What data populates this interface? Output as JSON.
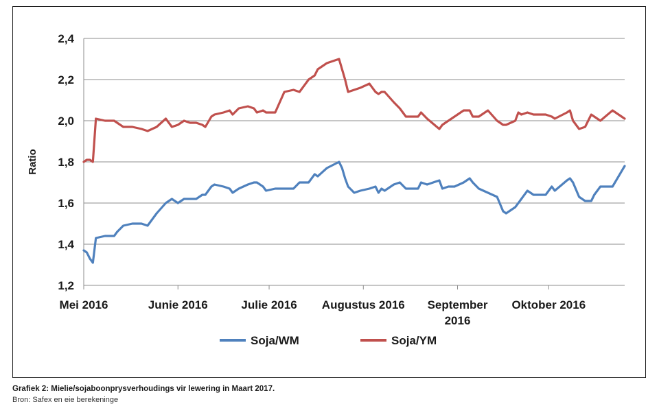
{
  "chart_data": {
    "type": "line",
    "ylabel": "Ratio",
    "ylim": [
      1.2,
      2.4
    ],
    "yticks": [
      "1,2",
      "1,4",
      "1,6",
      "1,8",
      "2,0",
      "2,2",
      "2,4"
    ],
    "x_range": [
      "2016-05-01",
      "2016-10-26"
    ],
    "x_ticks": [
      {
        "label": [
          "Mei 2016"
        ],
        "date": "2016-05-01"
      },
      {
        "label": [
          "Junie 2016"
        ],
        "date": "2016-06-01"
      },
      {
        "label": [
          "Julie 2016"
        ],
        "date": "2016-07-01"
      },
      {
        "label": [
          "Augustus 2016"
        ],
        "date": "2016-08-01"
      },
      {
        "label": [
          "September",
          "2016"
        ],
        "date": "2016-09-01"
      },
      {
        "label": [
          "Oktober 2016"
        ],
        "date": "2016-10-01"
      }
    ],
    "grid": true,
    "legend_position": "bottom",
    "series": [
      {
        "name": "Soja/WM",
        "color": "#4f81bd",
        "points": [
          [
            "2016-05-01",
            1.37
          ],
          [
            "2016-05-02",
            1.36
          ],
          [
            "2016-05-03",
            1.33
          ],
          [
            "2016-05-04",
            1.31
          ],
          [
            "2016-05-05",
            1.43
          ],
          [
            "2016-05-08",
            1.44
          ],
          [
            "2016-05-10",
            1.44
          ],
          [
            "2016-05-11",
            1.44
          ],
          [
            "2016-05-12",
            1.46
          ],
          [
            "2016-05-14",
            1.49
          ],
          [
            "2016-05-17",
            1.5
          ],
          [
            "2016-05-20",
            1.5
          ],
          [
            "2016-05-22",
            1.49
          ],
          [
            "2016-05-25",
            1.55
          ],
          [
            "2016-05-28",
            1.6
          ],
          [
            "2016-05-30",
            1.62
          ],
          [
            "2016-06-01",
            1.6
          ],
          [
            "2016-06-03",
            1.62
          ],
          [
            "2016-06-05",
            1.62
          ],
          [
            "2016-06-07",
            1.62
          ],
          [
            "2016-06-09",
            1.64
          ],
          [
            "2016-06-10",
            1.64
          ],
          [
            "2016-06-12",
            1.68
          ],
          [
            "2016-06-13",
            1.69
          ],
          [
            "2016-06-16",
            1.68
          ],
          [
            "2016-06-18",
            1.67
          ],
          [
            "2016-06-19",
            1.65
          ],
          [
            "2016-06-21",
            1.67
          ],
          [
            "2016-06-24",
            1.69
          ],
          [
            "2016-06-26",
            1.7
          ],
          [
            "2016-06-27",
            1.7
          ],
          [
            "2016-06-29",
            1.68
          ],
          [
            "2016-06-30",
            1.66
          ],
          [
            "2016-07-03",
            1.67
          ],
          [
            "2016-07-06",
            1.67
          ],
          [
            "2016-07-09",
            1.67
          ],
          [
            "2016-07-11",
            1.7
          ],
          [
            "2016-07-14",
            1.7
          ],
          [
            "2016-07-16",
            1.74
          ],
          [
            "2016-07-17",
            1.73
          ],
          [
            "2016-07-20",
            1.77
          ],
          [
            "2016-07-24",
            1.8
          ],
          [
            "2016-07-25",
            1.77
          ],
          [
            "2016-07-26",
            1.72
          ],
          [
            "2016-07-27",
            1.68
          ],
          [
            "2016-07-29",
            1.65
          ],
          [
            "2016-07-31",
            1.66
          ],
          [
            "2016-08-03",
            1.67
          ],
          [
            "2016-08-05",
            1.68
          ],
          [
            "2016-08-06",
            1.65
          ],
          [
            "2016-08-07",
            1.67
          ],
          [
            "2016-08-08",
            1.66
          ],
          [
            "2016-08-11",
            1.69
          ],
          [
            "2016-08-13",
            1.7
          ],
          [
            "2016-08-15",
            1.67
          ],
          [
            "2016-08-19",
            1.67
          ],
          [
            "2016-08-20",
            1.7
          ],
          [
            "2016-08-22",
            1.69
          ],
          [
            "2016-08-26",
            1.71
          ],
          [
            "2016-08-27",
            1.67
          ],
          [
            "2016-08-29",
            1.68
          ],
          [
            "2016-08-31",
            1.68
          ],
          [
            "2016-09-03",
            1.7
          ],
          [
            "2016-09-05",
            1.72
          ],
          [
            "2016-09-06",
            1.7
          ],
          [
            "2016-09-08",
            1.67
          ],
          [
            "2016-09-11",
            1.65
          ],
          [
            "2016-09-14",
            1.63
          ],
          [
            "2016-09-16",
            1.56
          ],
          [
            "2016-09-17",
            1.55
          ],
          [
            "2016-09-20",
            1.58
          ],
          [
            "2016-09-21",
            1.6
          ],
          [
            "2016-09-22",
            1.62
          ],
          [
            "2016-09-24",
            1.66
          ],
          [
            "2016-09-26",
            1.64
          ],
          [
            "2016-09-30",
            1.64
          ],
          [
            "2016-10-02",
            1.68
          ],
          [
            "2016-10-03",
            1.66
          ],
          [
            "2016-10-07",
            1.71
          ],
          [
            "2016-10-08",
            1.72
          ],
          [
            "2016-10-09",
            1.7
          ],
          [
            "2016-10-11",
            1.63
          ],
          [
            "2016-10-13",
            1.61
          ],
          [
            "2016-10-15",
            1.61
          ],
          [
            "2016-10-16",
            1.64
          ],
          [
            "2016-10-18",
            1.68
          ],
          [
            "2016-10-22",
            1.68
          ],
          [
            "2016-10-26",
            1.78
          ]
        ]
      },
      {
        "name": "Soja/YM",
        "color": "#c0504d",
        "points": [
          [
            "2016-05-01",
            1.8
          ],
          [
            "2016-05-02",
            1.81
          ],
          [
            "2016-05-03",
            1.81
          ],
          [
            "2016-05-04",
            1.8
          ],
          [
            "2016-05-05",
            2.01
          ],
          [
            "2016-05-08",
            2.0
          ],
          [
            "2016-05-10",
            2.0
          ],
          [
            "2016-05-11",
            2.0
          ],
          [
            "2016-05-12",
            1.99
          ],
          [
            "2016-05-14",
            1.97
          ],
          [
            "2016-05-17",
            1.97
          ],
          [
            "2016-05-20",
            1.96
          ],
          [
            "2016-05-22",
            1.95
          ],
          [
            "2016-05-25",
            1.97
          ],
          [
            "2016-05-28",
            2.01
          ],
          [
            "2016-05-30",
            1.97
          ],
          [
            "2016-06-01",
            1.98
          ],
          [
            "2016-06-03",
            2.0
          ],
          [
            "2016-06-05",
            1.99
          ],
          [
            "2016-06-07",
            1.99
          ],
          [
            "2016-06-09",
            1.98
          ],
          [
            "2016-06-10",
            1.97
          ],
          [
            "2016-06-12",
            2.02
          ],
          [
            "2016-06-13",
            2.03
          ],
          [
            "2016-06-16",
            2.04
          ],
          [
            "2016-06-18",
            2.05
          ],
          [
            "2016-06-19",
            2.03
          ],
          [
            "2016-06-21",
            2.06
          ],
          [
            "2016-06-24",
            2.07
          ],
          [
            "2016-06-26",
            2.06
          ],
          [
            "2016-06-27",
            2.04
          ],
          [
            "2016-06-29",
            2.05
          ],
          [
            "2016-06-30",
            2.04
          ],
          [
            "2016-07-03",
            2.04
          ],
          [
            "2016-07-06",
            2.14
          ],
          [
            "2016-07-09",
            2.15
          ],
          [
            "2016-07-11",
            2.14
          ],
          [
            "2016-07-14",
            2.2
          ],
          [
            "2016-07-16",
            2.22
          ],
          [
            "2016-07-17",
            2.25
          ],
          [
            "2016-07-20",
            2.28
          ],
          [
            "2016-07-24",
            2.3
          ],
          [
            "2016-07-25",
            2.25
          ],
          [
            "2016-07-26",
            2.2
          ],
          [
            "2016-07-27",
            2.14
          ],
          [
            "2016-07-29",
            2.15
          ],
          [
            "2016-07-31",
            2.16
          ],
          [
            "2016-08-03",
            2.18
          ],
          [
            "2016-08-05",
            2.14
          ],
          [
            "2016-08-06",
            2.13
          ],
          [
            "2016-08-07",
            2.14
          ],
          [
            "2016-08-08",
            2.14
          ],
          [
            "2016-08-11",
            2.09
          ],
          [
            "2016-08-13",
            2.06
          ],
          [
            "2016-08-15",
            2.02
          ],
          [
            "2016-08-19",
            2.02
          ],
          [
            "2016-08-20",
            2.04
          ],
          [
            "2016-08-22",
            2.01
          ],
          [
            "2016-08-26",
            1.96
          ],
          [
            "2016-08-27",
            1.98
          ],
          [
            "2016-08-29",
            2.0
          ],
          [
            "2016-08-31",
            2.02
          ],
          [
            "2016-09-03",
            2.05
          ],
          [
            "2016-09-05",
            2.05
          ],
          [
            "2016-09-06",
            2.02
          ],
          [
            "2016-09-08",
            2.02
          ],
          [
            "2016-09-11",
            2.05
          ],
          [
            "2016-09-14",
            2.0
          ],
          [
            "2016-09-16",
            1.98
          ],
          [
            "2016-09-17",
            1.98
          ],
          [
            "2016-09-20",
            2.0
          ],
          [
            "2016-09-21",
            2.04
          ],
          [
            "2016-09-22",
            2.03
          ],
          [
            "2016-09-24",
            2.04
          ],
          [
            "2016-09-26",
            2.03
          ],
          [
            "2016-09-30",
            2.03
          ],
          [
            "2016-10-02",
            2.02
          ],
          [
            "2016-10-03",
            2.01
          ],
          [
            "2016-10-07",
            2.04
          ],
          [
            "2016-10-08",
            2.05
          ],
          [
            "2016-10-09",
            2.0
          ],
          [
            "2016-10-11",
            1.96
          ],
          [
            "2016-10-13",
            1.97
          ],
          [
            "2016-10-15",
            2.03
          ],
          [
            "2016-10-16",
            2.02
          ],
          [
            "2016-10-18",
            2.0
          ],
          [
            "2016-10-22",
            2.05
          ],
          [
            "2016-10-26",
            2.01
          ]
        ]
      }
    ]
  },
  "caption": {
    "title": "Grafiek 2: Mielie/sojaboonprysverhoudings vir lewering in Maart 2017.",
    "source": "Bron: Safex en eie berekeninge"
  }
}
